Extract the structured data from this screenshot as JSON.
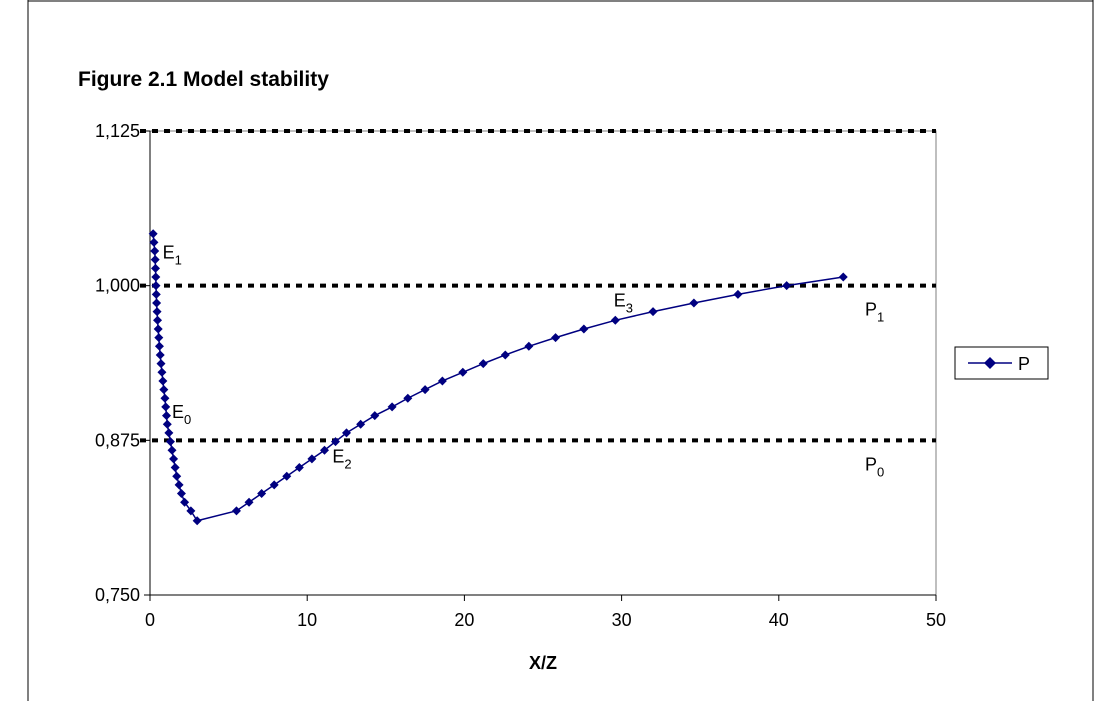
{
  "chart_data": {
    "type": "line",
    "title": "Figure 2.1 Model stability",
    "xlabel": "X/Z",
    "ylabel": "",
    "xlim": [
      0,
      50
    ],
    "ylim": [
      0.75,
      1.125
    ],
    "x_ticks": [
      "0",
      "10",
      "20",
      "30",
      "40",
      "50"
    ],
    "y_ticks": [
      "0,750",
      "0,875",
      "1,000",
      "1,125"
    ],
    "grid": false,
    "legend_position": "right",
    "series": [
      {
        "name": "P",
        "color": "#000080",
        "marker": "diamond",
        "points": [
          [
            0.2,
            1.042
          ],
          [
            0.25,
            1.035
          ],
          [
            0.3,
            1.028
          ],
          [
            0.33,
            1.021
          ],
          [
            0.35,
            1.014
          ],
          [
            0.37,
            1.007
          ],
          [
            0.38,
            1.0
          ],
          [
            0.4,
            0.993
          ],
          [
            0.42,
            0.986
          ],
          [
            0.45,
            0.979
          ],
          [
            0.48,
            0.972
          ],
          [
            0.52,
            0.965
          ],
          [
            0.56,
            0.958
          ],
          [
            0.6,
            0.951
          ],
          [
            0.65,
            0.944
          ],
          [
            0.7,
            0.937
          ],
          [
            0.76,
            0.93
          ],
          [
            0.82,
            0.923
          ],
          [
            0.88,
            0.916
          ],
          [
            0.95,
            0.909
          ],
          [
            1.0,
            0.902
          ],
          [
            1.05,
            0.895
          ],
          [
            1.1,
            0.888
          ],
          [
            1.2,
            0.881
          ],
          [
            1.3,
            0.874
          ],
          [
            1.4,
            0.867
          ],
          [
            1.5,
            0.86
          ],
          [
            1.6,
            0.853
          ],
          [
            1.7,
            0.846
          ],
          [
            1.85,
            0.839
          ],
          [
            2.0,
            0.832
          ],
          [
            2.2,
            0.825
          ],
          [
            2.6,
            0.818
          ],
          [
            3.0,
            0.81
          ],
          [
            5.5,
            0.818
          ],
          [
            6.3,
            0.825
          ],
          [
            7.1,
            0.832
          ],
          [
            7.9,
            0.839
          ],
          [
            8.7,
            0.846
          ],
          [
            9.5,
            0.853
          ],
          [
            10.3,
            0.86
          ],
          [
            11.1,
            0.867
          ],
          [
            11.8,
            0.874
          ],
          [
            12.5,
            0.881
          ],
          [
            13.4,
            0.888
          ],
          [
            14.3,
            0.895
          ],
          [
            15.4,
            0.902
          ],
          [
            16.4,
            0.909
          ],
          [
            17.5,
            0.916
          ],
          [
            18.6,
            0.923
          ],
          [
            19.9,
            0.93
          ],
          [
            21.2,
            0.937
          ],
          [
            22.6,
            0.944
          ],
          [
            24.1,
            0.951
          ],
          [
            25.8,
            0.958
          ],
          [
            27.6,
            0.965
          ],
          [
            29.6,
            0.972
          ],
          [
            32.0,
            0.979
          ],
          [
            34.6,
            0.986
          ],
          [
            37.4,
            0.993
          ],
          [
            40.5,
            1.0
          ],
          [
            44.1,
            1.007
          ]
        ]
      }
    ],
    "reference_lines": [
      {
        "y": 1.125,
        "style": "dotted"
      },
      {
        "y": 1.0,
        "label": "P",
        "sub": "1",
        "style": "dotted"
      },
      {
        "y": 0.875,
        "label": "P",
        "sub": "0",
        "style": "dotted"
      }
    ],
    "annotations": [
      {
        "label": "E",
        "sub": "1",
        "x": 0.8,
        "y": 1.022
      },
      {
        "label": "E",
        "sub": "0",
        "x": 1.4,
        "y": 0.893
      },
      {
        "label": "E",
        "sub": "2",
        "x": 11.6,
        "y": 0.857
      },
      {
        "label": "E",
        "sub": "3",
        "x": 29.5,
        "y": 0.983
      }
    ]
  }
}
